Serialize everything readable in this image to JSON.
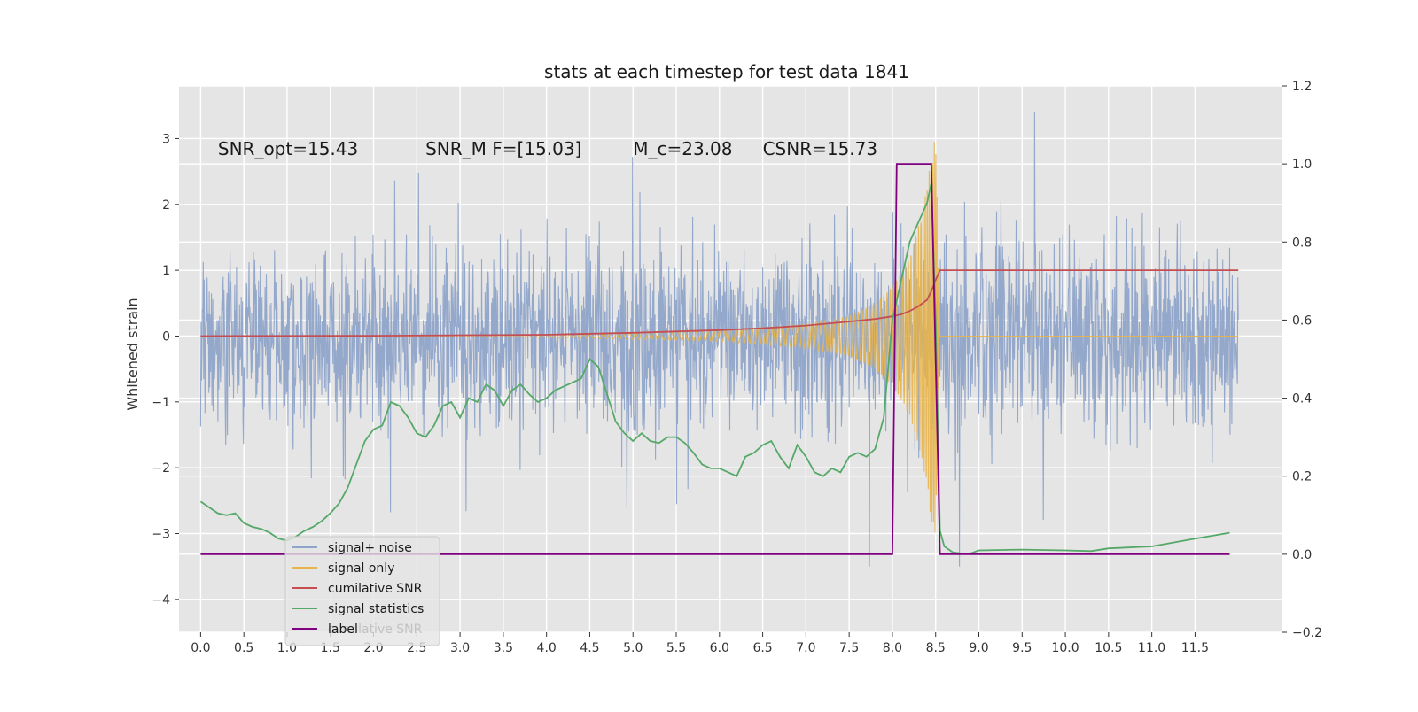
{
  "chart_data": {
    "type": "line",
    "title": "stats at each timestep for test data 1841",
    "ylabel": "Whitened strain",
    "xlabel": "",
    "xlim": [
      -0.25,
      12.5
    ],
    "ylim": [
      -4.5,
      3.8
    ],
    "y2lim": [
      -0.2,
      1.2
    ],
    "x_ticks": [
      "0.0",
      "0.5",
      "1.0",
      "1.5",
      "2.0",
      "2.5",
      "3.0",
      "3.5",
      "4.0",
      "4.5",
      "5.0",
      "5.5",
      "6.0",
      "6.5",
      "7.0",
      "7.5",
      "8.0",
      "8.5",
      "9.0",
      "9.5",
      "10.0",
      "10.5",
      "11.0",
      "11.5"
    ],
    "y_ticks": [
      -4,
      -3,
      -2,
      -1,
      0,
      1,
      2,
      3
    ],
    "y_tick_labels": [
      "−4",
      "−3",
      "−2",
      "−1",
      "0",
      "1",
      "2",
      "3"
    ],
    "y2_ticks": [
      -0.2,
      0.0,
      0.2,
      0.4,
      0.6,
      0.8,
      1.0,
      1.2
    ],
    "y2_tick_labels": [
      "−0.2",
      "0.0",
      "0.2",
      "0.4",
      "0.6",
      "0.8",
      "1.0",
      "1.2"
    ],
    "grid": true,
    "legend_position": "lower-left",
    "annotations": [
      {
        "text": "SNR_opt=15.43",
        "x": 0.2,
        "y": 2.75
      },
      {
        "text": "SNR_M F=[15.03]",
        "x": 2.6,
        "y": 2.75
      },
      {
        "text": "M_c=23.08",
        "x": 5.0,
        "y": 2.75
      },
      {
        "text": "CSNR=15.73",
        "x": 6.5,
        "y": 2.75
      }
    ],
    "series": [
      {
        "name": "signal+ noise",
        "color": "#8fa4c9",
        "axis": "left",
        "kind": "noise",
        "x_range": [
          0.0,
          12.0
        ],
        "typical_amplitude": 1.0,
        "envelope_max": [
          2.7,
          3.4
        ],
        "envelope_min": [
          -2.1,
          -3.5
        ]
      },
      {
        "name": "signal only",
        "color": "#e8b44a",
        "axis": "left",
        "kind": "chirp",
        "x_range": [
          0.0,
          8.55
        ],
        "merger_x": 8.5,
        "peak_amplitude": 3.1,
        "amplitude_at": [
          [
            0.0,
            0.0
          ],
          [
            4.0,
            0.02
          ],
          [
            6.0,
            0.08
          ],
          [
            7.0,
            0.18
          ],
          [
            7.5,
            0.3
          ],
          [
            7.8,
            0.5
          ],
          [
            8.0,
            0.75
          ],
          [
            8.2,
            1.2
          ],
          [
            8.35,
            1.9
          ],
          [
            8.45,
            2.8
          ],
          [
            8.5,
            3.1
          ],
          [
            8.55,
            0.0
          ]
        ]
      },
      {
        "name": "cumilative SNR",
        "color": "#c44e52",
        "axis": "left",
        "x": [
          0.0,
          2.0,
          4.0,
          5.0,
          6.0,
          6.5,
          7.0,
          7.5,
          7.8,
          8.0,
          8.1,
          8.2,
          8.3,
          8.4,
          8.45,
          8.5,
          8.55,
          12.0
        ],
        "y": [
          0.0,
          0.005,
          0.02,
          0.05,
          0.09,
          0.12,
          0.16,
          0.22,
          0.26,
          0.3,
          0.33,
          0.38,
          0.45,
          0.55,
          0.68,
          0.85,
          1.0,
          1.0
        ]
      },
      {
        "name": "signal statistics",
        "color": "#55a868",
        "axis": "right",
        "x": [
          0.0,
          0.1,
          0.2,
          0.3,
          0.4,
          0.5,
          0.6,
          0.7,
          0.8,
          0.9,
          1.0,
          1.1,
          1.2,
          1.3,
          1.4,
          1.5,
          1.6,
          1.7,
          1.8,
          1.9,
          2.0,
          2.1,
          2.2,
          2.3,
          2.4,
          2.5,
          2.6,
          2.7,
          2.8,
          2.9,
          3.0,
          3.1,
          3.2,
          3.3,
          3.4,
          3.5,
          3.6,
          3.7,
          3.8,
          3.9,
          4.0,
          4.1,
          4.2,
          4.3,
          4.4,
          4.5,
          4.6,
          4.7,
          4.8,
          4.9,
          5.0,
          5.1,
          5.2,
          5.3,
          5.4,
          5.5,
          5.6,
          5.7,
          5.8,
          5.9,
          6.0,
          6.1,
          6.2,
          6.3,
          6.4,
          6.5,
          6.6,
          6.7,
          6.8,
          6.9,
          7.0,
          7.1,
          7.2,
          7.3,
          7.4,
          7.5,
          7.6,
          7.7,
          7.8,
          7.9,
          8.0,
          8.1,
          8.2,
          8.3,
          8.4,
          8.45,
          8.5,
          8.55,
          8.6,
          8.7,
          8.8,
          8.9,
          9.0,
          9.5,
          10.0,
          10.3,
          10.5,
          11.0,
          11.5,
          11.9
        ],
        "y": [
          0.135,
          0.12,
          0.105,
          0.1,
          0.105,
          0.08,
          0.07,
          0.065,
          0.055,
          0.04,
          0.035,
          0.045,
          0.06,
          0.07,
          0.085,
          0.105,
          0.13,
          0.17,
          0.23,
          0.29,
          0.32,
          0.33,
          0.39,
          0.38,
          0.35,
          0.31,
          0.3,
          0.33,
          0.38,
          0.39,
          0.35,
          0.4,
          0.39,
          0.435,
          0.42,
          0.38,
          0.42,
          0.435,
          0.41,
          0.39,
          0.4,
          0.42,
          0.43,
          0.44,
          0.45,
          0.5,
          0.48,
          0.41,
          0.34,
          0.31,
          0.29,
          0.31,
          0.29,
          0.285,
          0.3,
          0.3,
          0.285,
          0.26,
          0.23,
          0.22,
          0.22,
          0.21,
          0.2,
          0.25,
          0.26,
          0.28,
          0.29,
          0.25,
          0.22,
          0.28,
          0.25,
          0.21,
          0.2,
          0.22,
          0.21,
          0.25,
          0.26,
          0.25,
          0.27,
          0.35,
          0.6,
          0.7,
          0.8,
          0.85,
          0.9,
          0.95,
          0.6,
          0.06,
          0.02,
          0.005,
          0.002,
          0.002,
          0.01,
          0.012,
          0.01,
          0.008,
          0.015,
          0.02,
          0.04,
          0.055
        ]
      },
      {
        "name": "label",
        "color": "#800080",
        "axis": "right",
        "x": [
          0.0,
          8.0,
          8.05,
          8.45,
          8.55,
          11.9
        ],
        "y": [
          0.0,
          0.0,
          1.0,
          1.0,
          0.0,
          0.0
        ]
      }
    ],
    "legend_entries": [
      "signal+ noise",
      "signal only",
      "cumilative SNR",
      "signal statistics",
      "label"
    ],
    "legend_hidden_text": "cumilative SNR"
  },
  "colors": {
    "background": "#ffffff",
    "plot_area": "#e5e5e5",
    "grid": "#ffffff",
    "text": "#333333"
  }
}
